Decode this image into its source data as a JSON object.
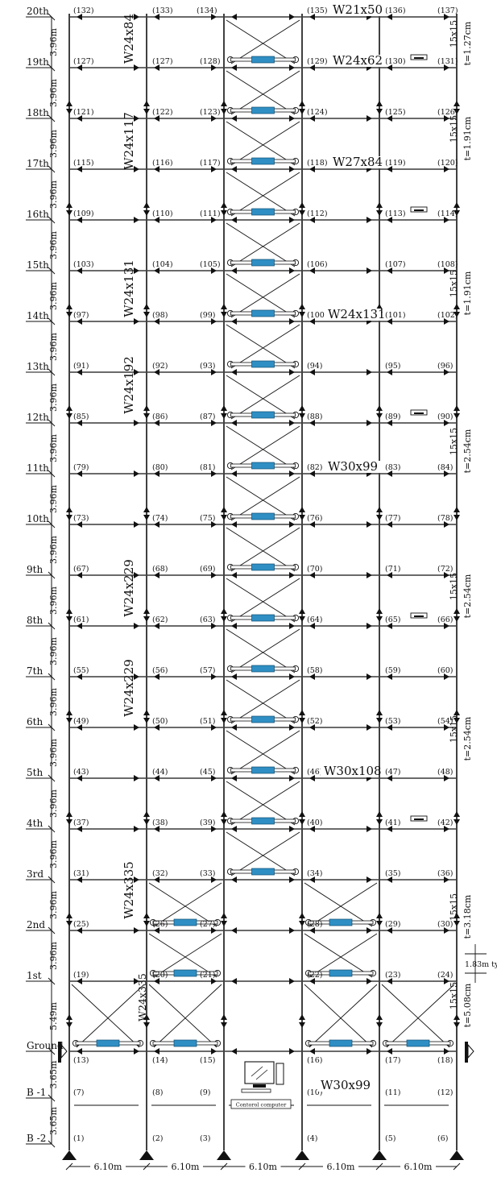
{
  "levels": [
    {
      "label": "20th",
      "dim": "3.96m"
    },
    {
      "label": "19th",
      "dim": "3.96m"
    },
    {
      "label": "18th",
      "dim": "3.96m"
    },
    {
      "label": "17th",
      "dim": "3.96m"
    },
    {
      "label": "16th",
      "dim": "3.96m"
    },
    {
      "label": "15th",
      "dim": "3.96m"
    },
    {
      "label": "14th",
      "dim": "3.96m"
    },
    {
      "label": "13th",
      "dim": "3.96m"
    },
    {
      "label": "12th",
      "dim": "3.96m"
    },
    {
      "label": "11th",
      "dim": "3.96m"
    },
    {
      "label": "10th",
      "dim": "3.96m"
    },
    {
      "label": "9th",
      "dim": "3.96m"
    },
    {
      "label": "8th",
      "dim": "3.96m"
    },
    {
      "label": "7th",
      "dim": "3.96m"
    },
    {
      "label": "6th",
      "dim": "3.96m"
    },
    {
      "label": "5th",
      "dim": "3.96m"
    },
    {
      "label": "4th",
      "dim": "3.96m"
    },
    {
      "label": "3rd",
      "dim": "3.96m"
    },
    {
      "label": "2nd",
      "dim": "3.96m"
    },
    {
      "label": "1st",
      "dim": "5.49m"
    },
    {
      "label": "Ground",
      "dim": "3.65m"
    },
    {
      "label": "B -1",
      "dim": "3.65m"
    },
    {
      "label": "B -2",
      "dim": ""
    }
  ],
  "node_rows": [
    [
      "(132)",
      "(133)",
      "(134)",
      "(135)",
      "(136)",
      "(137)"
    ],
    [
      "(127)",
      "(127)",
      "(128)",
      "(129)",
      "(130)",
      "(131)"
    ],
    [
      "(121)",
      "(122)",
      "(123)",
      "(124)",
      "(125)",
      "(126)"
    ],
    [
      "(115)",
      "(116)",
      "(117)",
      "(118)",
      "(119)",
      "(120)"
    ],
    [
      "(109)",
      "(110)",
      "(111)",
      "(112)",
      "(113)",
      "(114)"
    ],
    [
      "(103)",
      "(104)",
      "(105)",
      "(106)",
      "(107)",
      "(108)"
    ],
    [
      "(97)",
      "(98)",
      "(99)",
      "(100)",
      "(101)",
      "(102)"
    ],
    [
      "(91)",
      "(92)",
      "(93)",
      "(94)",
      "(95)",
      "(96)"
    ],
    [
      "(85)",
      "(86)",
      "(87)",
      "(88)",
      "(89)",
      "(90)"
    ],
    [
      "(79)",
      "(80)",
      "(81)",
      "(82)",
      "(83)",
      "(84)"
    ],
    [
      "(73)",
      "(74)",
      "(75)",
      "(76)",
      "(77)",
      "(78)"
    ],
    [
      "(67)",
      "(68)",
      "(69)",
      "(70)",
      "(71)",
      "(72)"
    ],
    [
      "(61)",
      "(62)",
      "(63)",
      "(64)",
      "(65)",
      "(66)"
    ],
    [
      "(55)",
      "(56)",
      "(57)",
      "(58)",
      "(59)",
      "(60)"
    ],
    [
      "(49)",
      "(50)",
      "(51)",
      "(52)",
      "(53)",
      "(54)"
    ],
    [
      "(43)",
      "(44)",
      "(45)",
      "(46)",
      "(47)",
      "(48)"
    ],
    [
      "(37)",
      "(38)",
      "(39)",
      "(40)",
      "(41)",
      "(42)"
    ],
    [
      "(31)",
      "(32)",
      "(33)",
      "(34)",
      "(35)",
      "(36)"
    ],
    [
      "(25)",
      "(26)",
      "(27)",
      "(28)",
      "(29)",
      "(30)"
    ],
    [
      "(19)",
      "(20)",
      "(21)",
      "(22)",
      "(23)",
      "(24)"
    ],
    [
      "(13)",
      "(14)",
      "(15)",
      "(16)",
      "(17)",
      "(18)"
    ],
    [
      "(7)",
      "(8)",
      "(9)",
      "(10)",
      "(11)",
      "(12)"
    ],
    [
      "(1)",
      "(2)",
      "(3)",
      "(4)",
      "(5)",
      "(6)"
    ]
  ],
  "column_sections": [
    "W24x84",
    "W24x117",
    "W24x131",
    "W24x192",
    "W24x229",
    "W24x229",
    "W24x335",
    "W24x335"
  ],
  "beam_sections": [
    "W21x50",
    "W24x62",
    "W27x84",
    "W24x131",
    "W30x99",
    "W30x108",
    "W30x99"
  ],
  "tube_sections": [
    {
      "size": "15x15",
      "thickness": "t=1.27cm"
    },
    {
      "size": "15x15",
      "thickness": "t=1.91cm"
    },
    {
      "size": "15x15",
      "thickness": "t=1.91cm"
    },
    {
      "size": "15x15",
      "thickness": "t=2.54cm"
    },
    {
      "size": "15x15",
      "thickness": "t=2.54cm"
    },
    {
      "size": "15x15",
      "thickness": "t=2.54cm"
    },
    {
      "size": "15x15",
      "thickness": "t=3.18cm"
    },
    {
      "size": "15x15",
      "thickness": "t=5.08cm"
    }
  ],
  "bay_width": "6.10m",
  "typ_note": "1.83m typ",
  "computer_label": "Contorol computer",
  "colors": {
    "line": "#111111",
    "damper": "#2f8fc4"
  },
  "icons": {
    "support": "pin-support-icon",
    "computer": "computer-icon",
    "sensor": "sensor-icon"
  }
}
